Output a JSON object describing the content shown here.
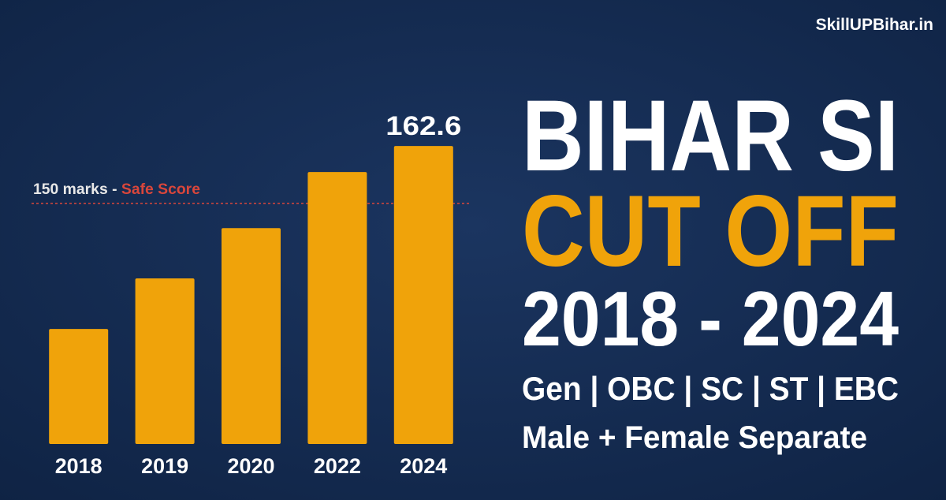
{
  "chart_data": {
    "type": "bar",
    "watermark": "SkillUPBihar.in",
    "title": [
      "BIHAR SI",
      "CUT OFF",
      "2018 - 2024"
    ],
    "subtitle": [
      "Gen | OBC | SC | ST | EBC",
      "Male + Female Separate"
    ],
    "categories": [
      "2018",
      "2019",
      "2020",
      "2022",
      "2024"
    ],
    "values": [
      122.5,
      133.6,
      144.6,
      156.9,
      162.6
    ],
    "value_labels": [
      null,
      null,
      null,
      null,
      "162.6"
    ],
    "color": "#f0a30a",
    "ylim": [
      97.3,
      170.4
    ],
    "reference_line": {
      "value": 150,
      "label": "150 marks -",
      "note": "Safe Score",
      "color": "#d9463b"
    }
  }
}
